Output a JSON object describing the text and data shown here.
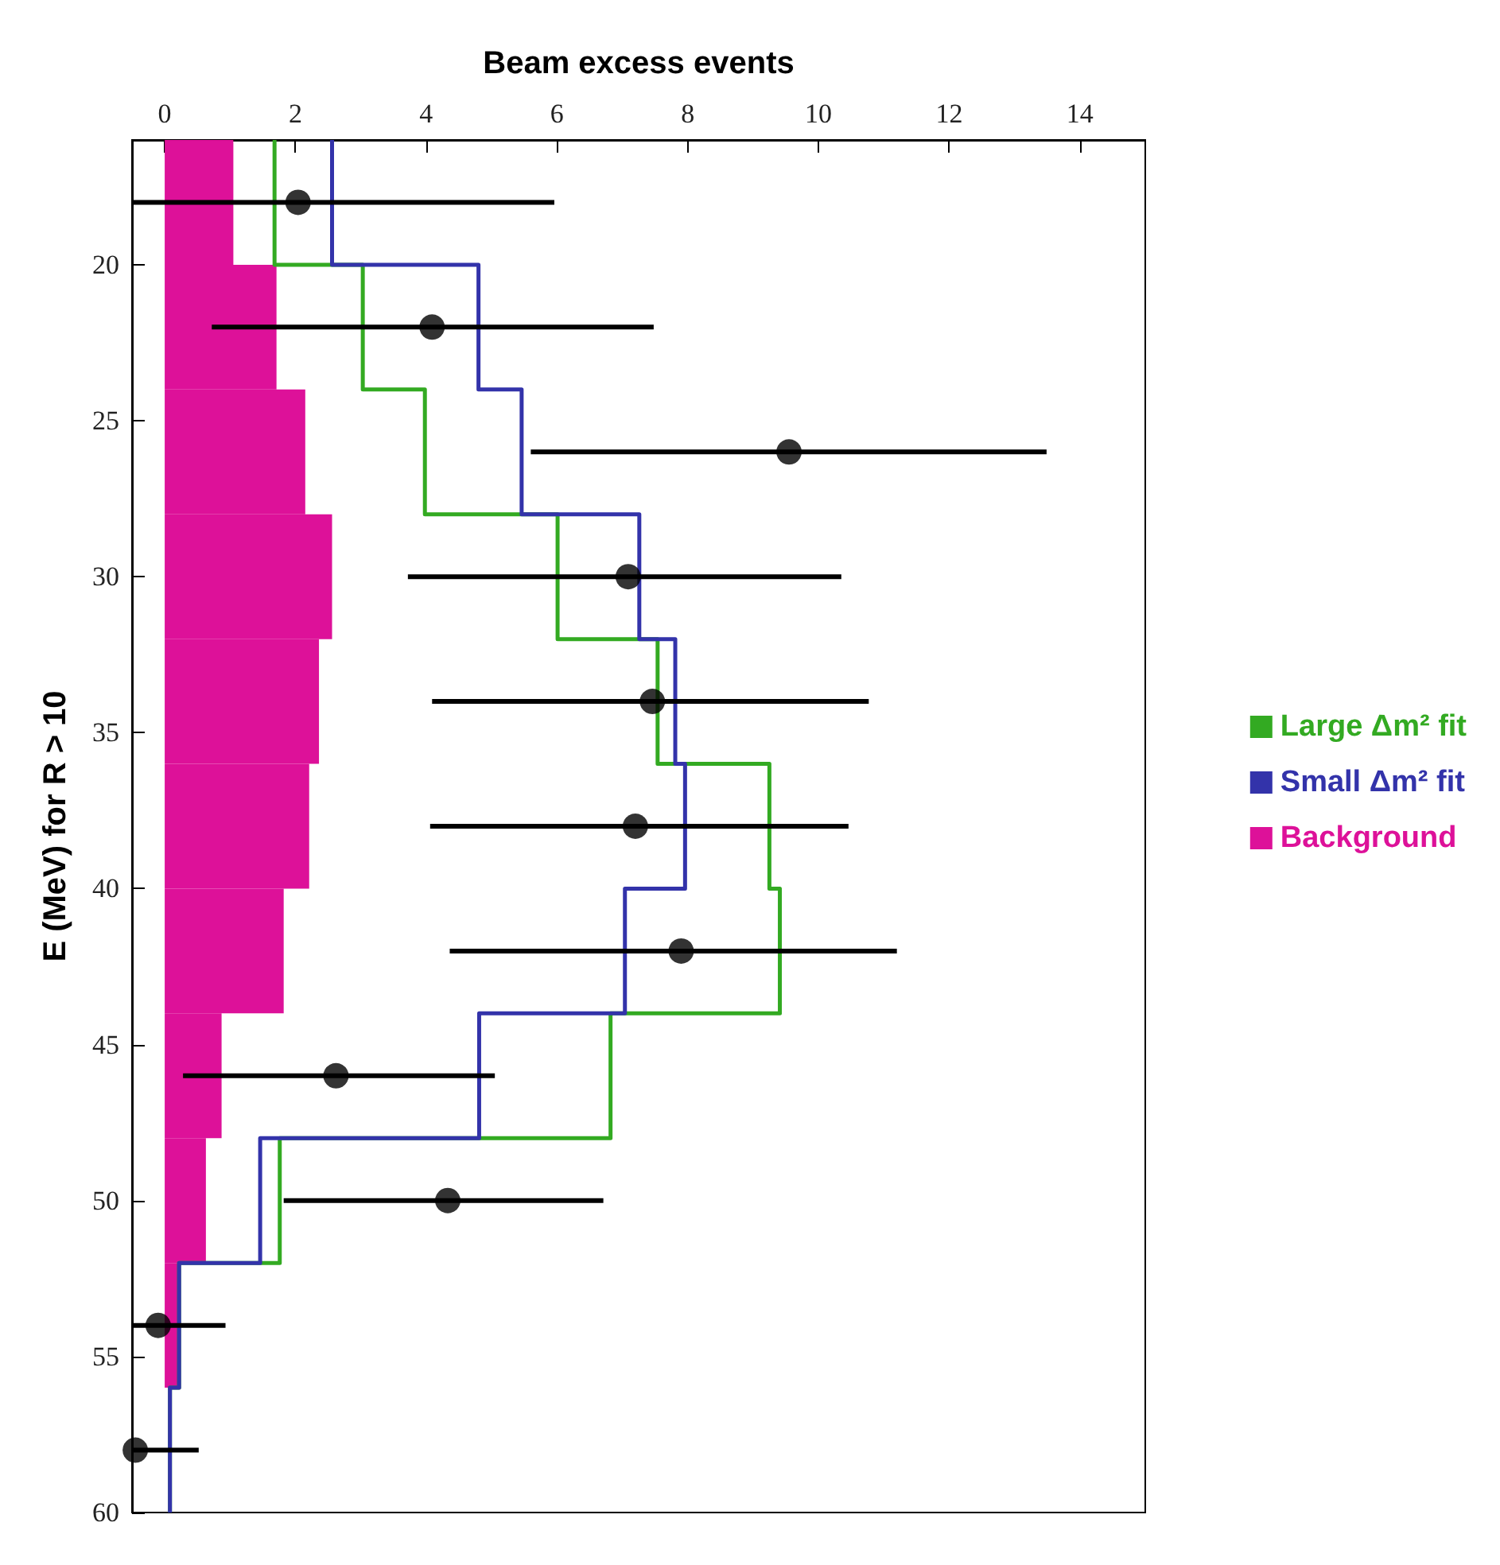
{
  "chart_data": {
    "type": "step",
    "orientation": "horizontal",
    "xlabel": "Beam excess events",
    "ylabel": "E (MeV) for R > 10",
    "xlim": [
      -0.5,
      15
    ],
    "xticks": [
      0,
      2,
      4,
      6,
      8,
      10,
      12,
      14
    ],
    "ylim": [
      60,
      16
    ],
    "yticks": [
      20,
      25,
      30,
      35,
      40,
      45,
      50,
      55,
      60
    ],
    "bins": [
      16,
      20,
      24,
      28,
      32,
      36,
      40,
      44,
      48,
      52,
      56,
      60
    ],
    "grid": false,
    "legend": "right",
    "series": [
      {
        "name": "Large Δm² fit",
        "color": "#33aa22",
        "x": [
          16,
          20,
          24,
          28,
          32,
          36,
          40,
          44,
          48,
          52,
          56,
          60
        ],
        "values": [
          1.68,
          3.03,
          3.98,
          6.01,
          7.54,
          9.25,
          9.41,
          6.82,
          1.76,
          0.22,
          0.08,
          0.08
        ]
      },
      {
        "name": "Small Δm² fit",
        "color": "#3333aa",
        "x": [
          16,
          20,
          24,
          28,
          32,
          36,
          40,
          44,
          48,
          52,
          56,
          60
        ],
        "values": [
          2.56,
          4.8,
          5.46,
          7.26,
          7.81,
          7.96,
          7.04,
          4.81,
          1.46,
          0.22,
          0.08,
          0.08
        ]
      },
      {
        "name": "Background",
        "type": "histogram",
        "color": "#dd1199",
        "values": [
          1.05,
          1.71,
          2.15,
          2.56,
          2.36,
          2.21,
          1.82,
          0.87,
          0.63,
          0.22,
          0
        ]
      },
      {
        "type": "scatter",
        "marker": "circle",
        "color": "#000000",
        "x": [
          18,
          22,
          26,
          30,
          34,
          38,
          42,
          46,
          50,
          54,
          58
        ],
        "values": [
          2.04,
          4.09,
          9.55,
          7.09,
          7.46,
          7.2,
          7.9,
          2.62,
          4.33,
          -0.1,
          -0.45
        ],
        "errors": [
          [
            -0.5,
            5.96
          ],
          [
            0.72,
            7.48
          ],
          [
            5.6,
            13.49
          ],
          [
            3.72,
            10.35
          ],
          [
            4.09,
            10.77
          ],
          [
            4.06,
            10.46
          ],
          [
            4.36,
            11.2
          ],
          [
            0.28,
            5.05
          ],
          [
            1.82,
            6.71
          ],
          [
            -0.5,
            0.93
          ],
          [
            -0.5,
            0.52
          ]
        ]
      }
    ]
  }
}
